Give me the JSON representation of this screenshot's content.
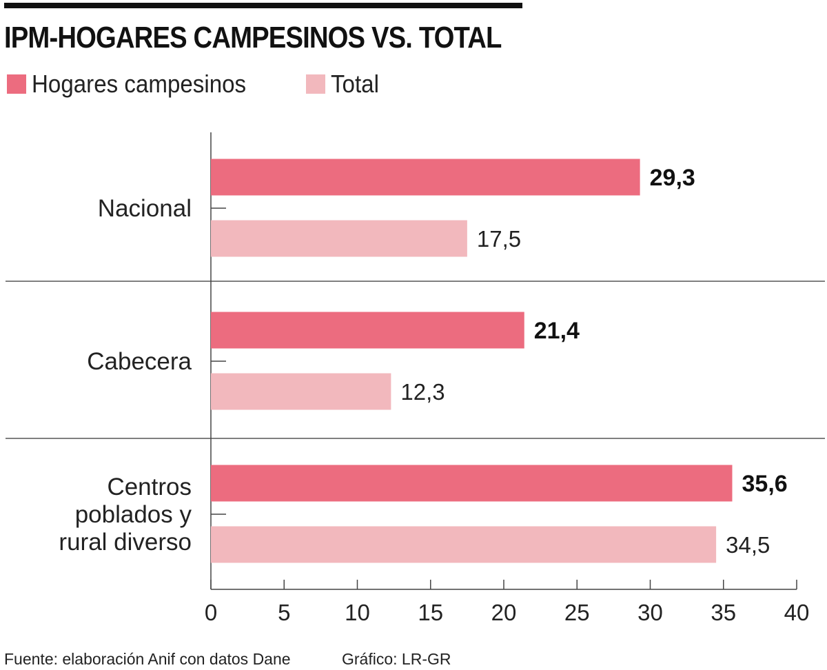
{
  "header": {
    "title": "IPM-HOGARES CAMPESINOS VS. TOTAL"
  },
  "legend": [
    {
      "label": "Hogares campesinos",
      "color": "#ec6c7f"
    },
    {
      "label": "Total",
      "color": "#f2b8bd"
    }
  ],
  "chart_data": {
    "type": "bar",
    "orientation": "horizontal",
    "title": "IPM-HOGARES CAMPESINOS VS. TOTAL",
    "xlabel": "",
    "ylabel": "",
    "xlim": [
      0,
      40
    ],
    "x_ticks": [
      "0",
      "5",
      "10",
      "15",
      "20",
      "25",
      "30",
      "35",
      "40"
    ],
    "categories": [
      [
        "Nacional"
      ],
      [
        "Cabecera"
      ],
      [
        "Centros",
        "poblados y",
        "rural diverso"
      ]
    ],
    "series": [
      {
        "name": "Hogares campesinos",
        "color": "#ec6c7f",
        "values": [
          29.3,
          21.4,
          35.6
        ],
        "labels": [
          "29,3",
          "21,4",
          "35,6"
        ],
        "label_bold": true
      },
      {
        "name": "Total",
        "color": "#f2b8bd",
        "values": [
          17.5,
          12.3,
          34.5
        ],
        "labels": [
          "17,5",
          "12,3",
          "34,5"
        ],
        "label_bold": false
      }
    ],
    "legend_position": "top-left",
    "grid": false
  },
  "footer": {
    "source": "Fuente: elaboración Anif con datos Dane",
    "credit": "Gráfico: LR-GR"
  }
}
